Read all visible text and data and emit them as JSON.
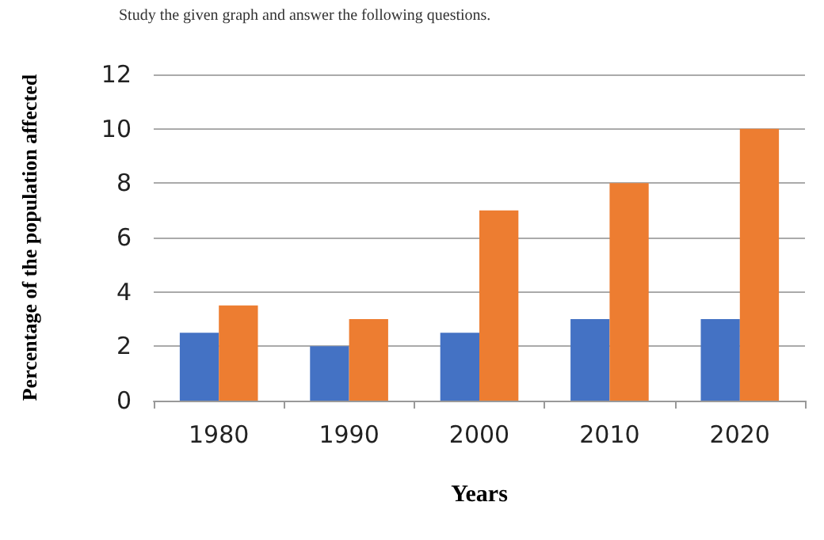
{
  "chart_data": {
    "type": "bar",
    "title": "Study the given graph and answer the following questions.",
    "xlabel": "Years",
    "ylabel": "Percentage of the population affected",
    "categories": [
      "1980",
      "1990",
      "2000",
      "2010",
      "2020"
    ],
    "series": [
      {
        "color": "#4472c4",
        "values": [
          2.5,
          2,
          2.5,
          3,
          3
        ]
      },
      {
        "color": "#ed7d31",
        "values": [
          3.5,
          3,
          7,
          8,
          10
        ]
      }
    ],
    "ylim": [
      0,
      12
    ],
    "yticks": [
      0,
      2,
      4,
      6,
      8,
      10,
      12
    ],
    "grid": "y"
  }
}
